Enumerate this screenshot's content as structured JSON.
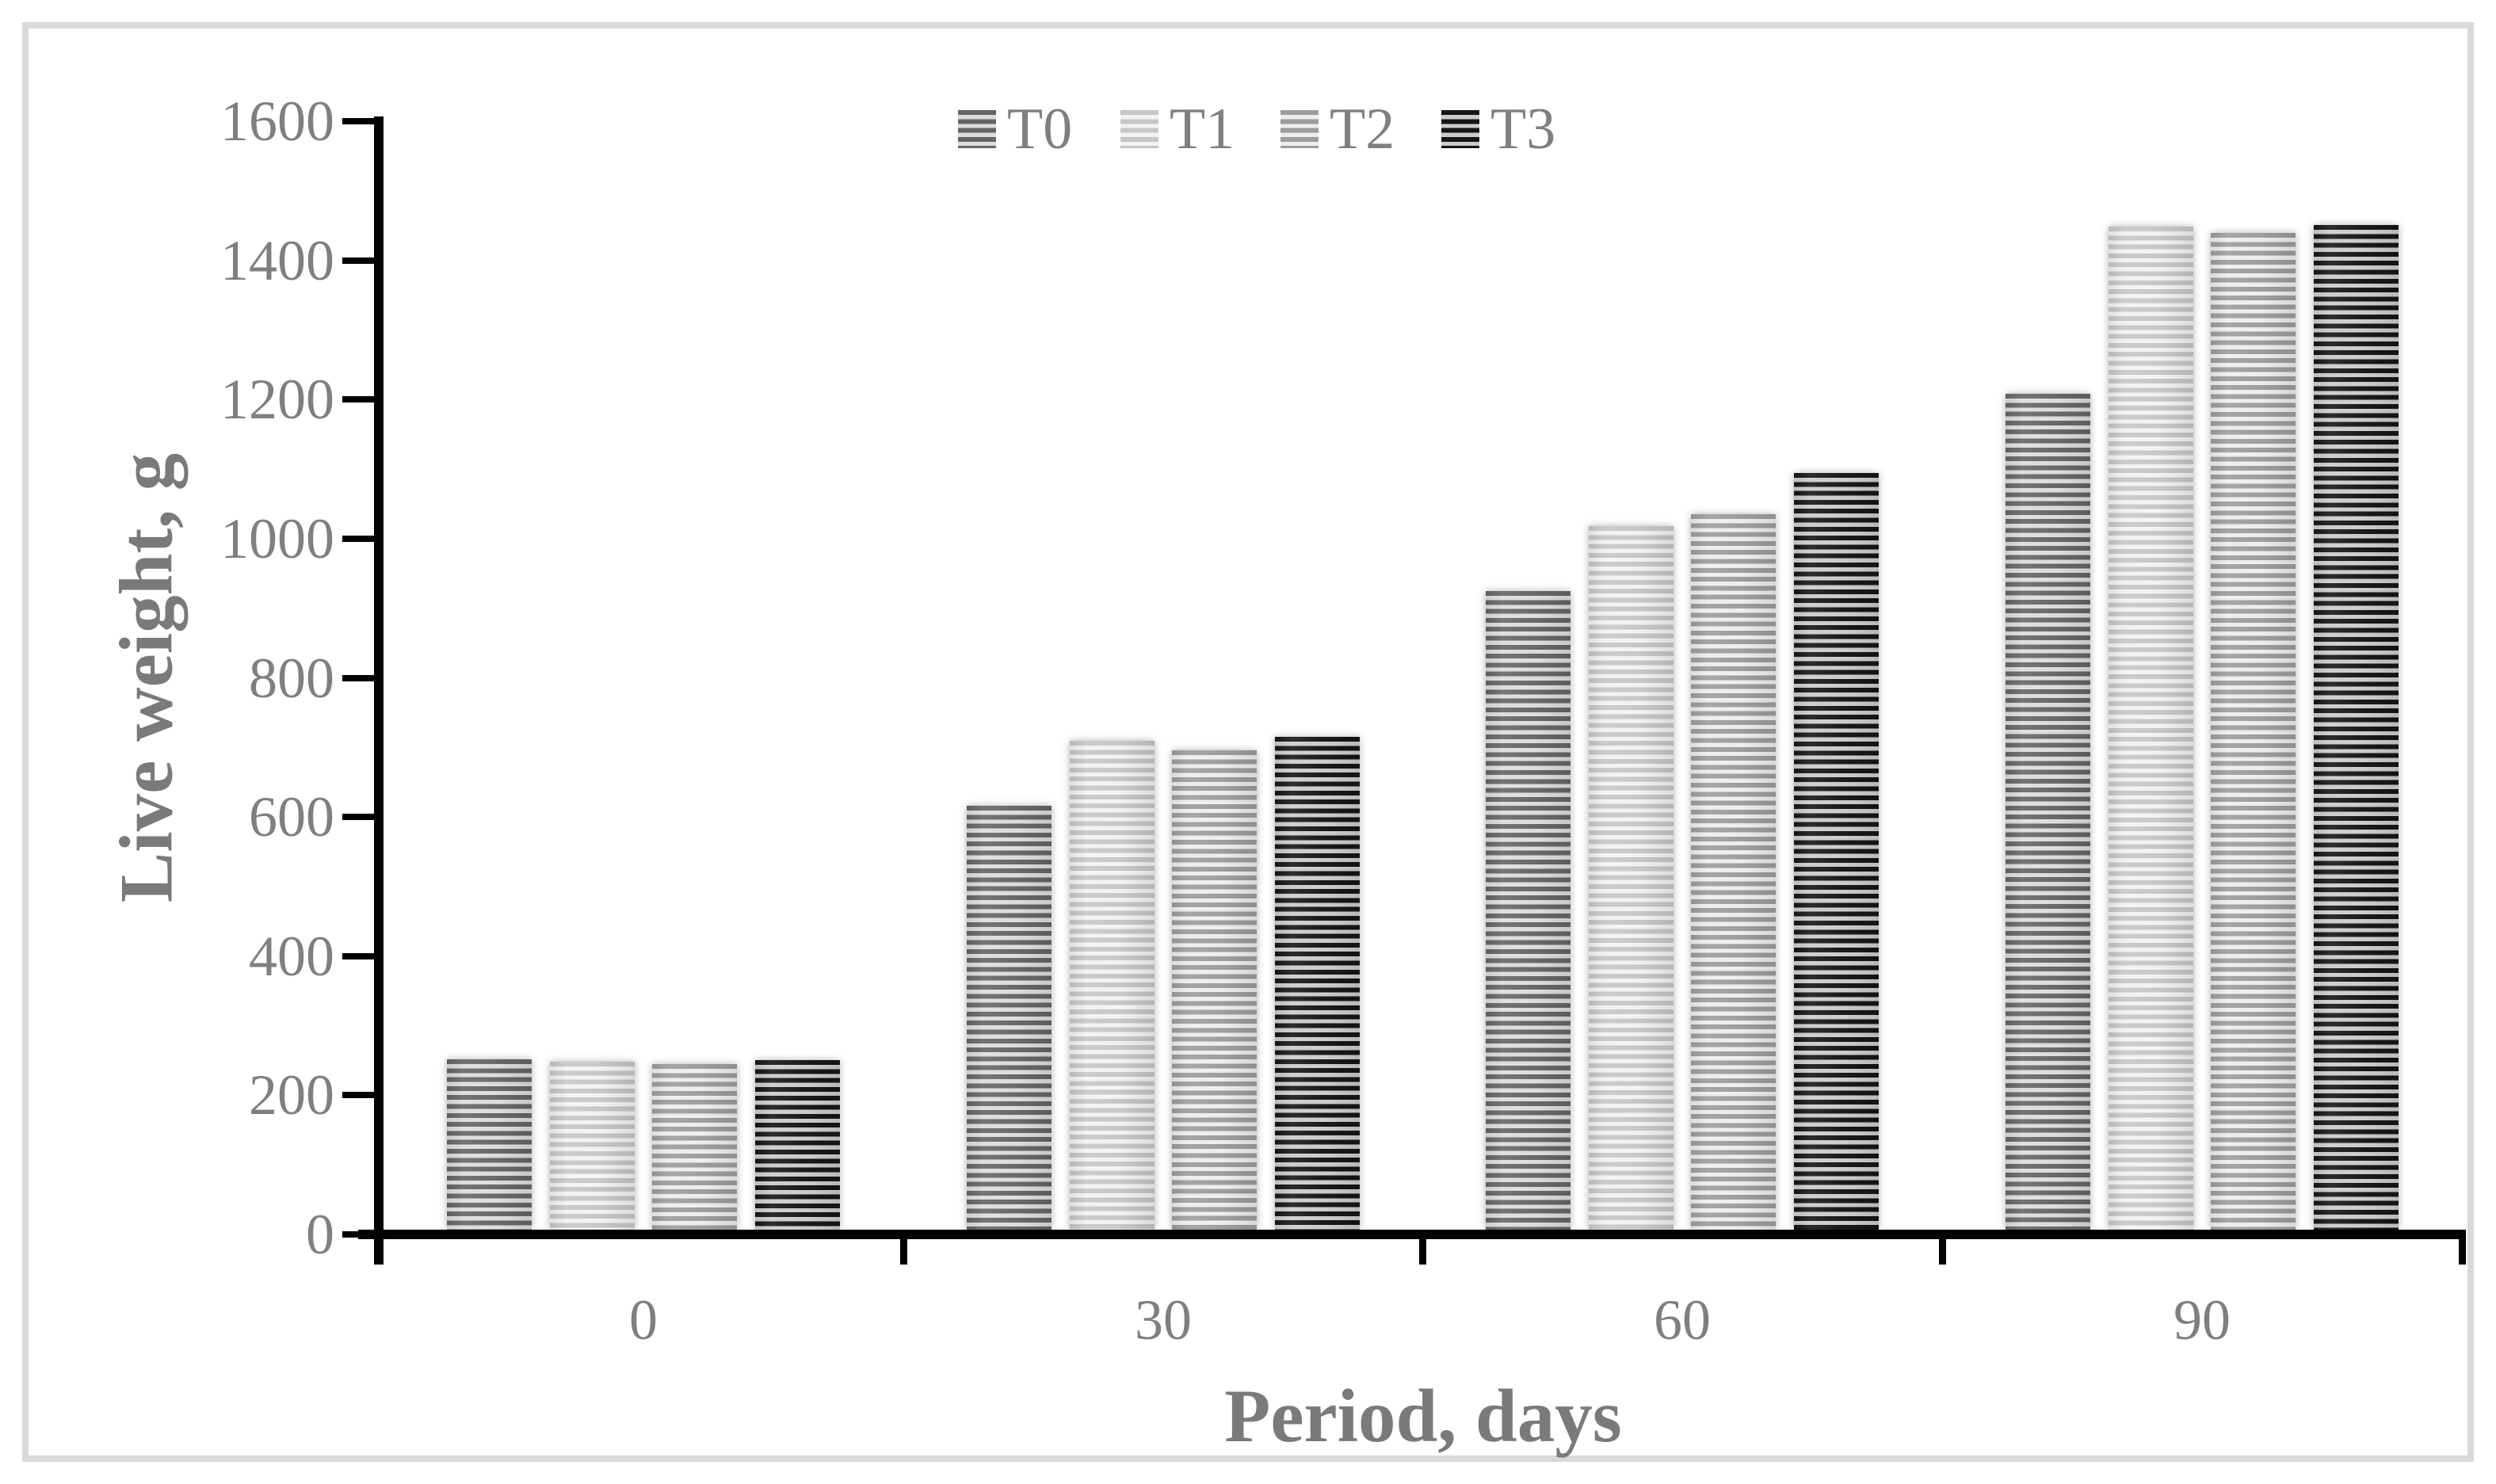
{
  "figure": {
    "background": "#ffffff",
    "border_color": "#d9d9d9",
    "axis_color": "#000000",
    "text_color": "#7f7f7f"
  },
  "chart_data": {
    "type": "bar",
    "title": "",
    "categories": [
      "0",
      "30",
      "60",
      "90"
    ],
    "series": [
      {
        "name": "T0",
        "values": [
          253,
          617,
          926,
          1210
        ],
        "stripe_color": "#656565",
        "fill_color": "#dcdcdc"
      },
      {
        "name": "T1",
        "values": [
          249,
          711,
          1019,
          1450
        ],
        "stripe_color": "#c6c6c6",
        "fill_color": "#f2f2f2"
      },
      {
        "name": "T2",
        "values": [
          246,
          697,
          1036,
          1441
        ],
        "stripe_color": "#9c9c9c",
        "fill_color": "#ededed"
      },
      {
        "name": "T3",
        "values": [
          252,
          716,
          1096,
          1452
        ],
        "stripe_color": "#151515",
        "fill_color": "#cbcbcb"
      }
    ],
    "xlabel": "Period, days",
    "ylabel": "Live weight, g",
    "ylim": [
      0,
      1600
    ],
    "ytick_step": 200,
    "yticks": [
      "0",
      "200",
      "400",
      "600",
      "800",
      "1000",
      "1200",
      "1400",
      "1600"
    ],
    "legend_position": "top-center",
    "legend_labels": [
      "T0",
      "T1",
      "T2",
      "T3"
    ],
    "grid": false,
    "bar_pattern": "horizontal-stripes"
  }
}
